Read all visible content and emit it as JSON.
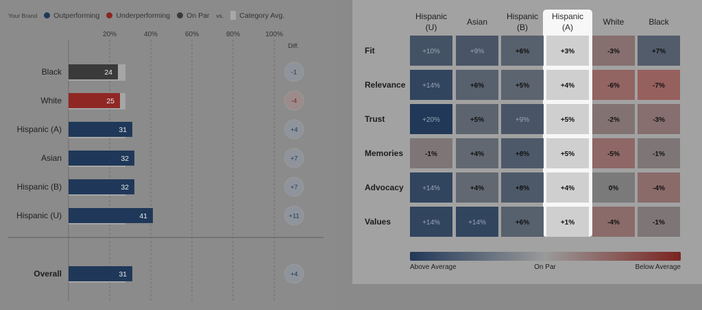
{
  "legend": {
    "brand_label": "Your Brand",
    "outperforming": "Outperforming",
    "underperforming": "Underperforming",
    "on_par": "On Par",
    "vs": "vs.",
    "category_avg": "Category Avg."
  },
  "colors": {
    "outperforming": "#1f3859",
    "underperforming": "#9a2a26",
    "on_par": "#3a3a3a",
    "category_avg": "#9c9c9c"
  },
  "chart_data": [
    {
      "type": "bar",
      "orientation": "horizontal",
      "categories": [
        "Black",
        "White",
        "Hispanic (A)",
        "Asian",
        "Hispanic (B)",
        "Hispanic (U)"
      ],
      "values": [
        24,
        25,
        31,
        32,
        32,
        41
      ],
      "status": [
        "on_par",
        "underperforming",
        "outperforming",
        "outperforming",
        "outperforming",
        "outperforming"
      ],
      "diff_label": "Diff.",
      "diffs": [
        "-1",
        "-4",
        "+4",
        "+7",
        "+7",
        "+11"
      ],
      "category_avg": 27,
      "xlim": [
        0,
        100
      ],
      "xticks": [
        "20%",
        "40%",
        "60%",
        "80%",
        "100%"
      ],
      "overall": {
        "label": "Overall",
        "value": 31,
        "diff": "+4",
        "status": "outperforming"
      }
    },
    {
      "type": "heatmap",
      "columns": [
        "Hispanic (U)",
        "Asian",
        "Hispanic (B)",
        "Hispanic (A)",
        "White",
        "Black"
      ],
      "highlight_column": "Hispanic (A)",
      "rows": [
        "Fit",
        "Relevance",
        "Trust",
        "Memories",
        "Advocacy",
        "Values"
      ],
      "values": [
        [
          10,
          9,
          6,
          3,
          -3,
          7
        ],
        [
          14,
          6,
          5,
          4,
          -6,
          -7
        ],
        [
          20,
          5,
          9,
          5,
          -2,
          -3
        ],
        [
          -1,
          4,
          8,
          5,
          -5,
          -1
        ],
        [
          14,
          4,
          8,
          4,
          0,
          -4
        ],
        [
          14,
          14,
          6,
          1,
          -4,
          -1
        ]
      ],
      "labels": [
        [
          "+10%",
          "+9%",
          "+6%",
          "+3%",
          "-3%",
          "+7%"
        ],
        [
          "+14%",
          "+6%",
          "+5%",
          "+4%",
          "-6%",
          "-7%"
        ],
        [
          "+20%",
          "+5%",
          "+9%",
          "+5%",
          "-2%",
          "-3%"
        ],
        [
          "-1%",
          "+4%",
          "+8%",
          "+5%",
          "-5%",
          "-1%"
        ],
        [
          "+14%",
          "+4%",
          "+8%",
          "+4%",
          "0%",
          "-4%"
        ],
        [
          "+14%",
          "+14%",
          "+6%",
          "+1%",
          "-4%",
          "-1%"
        ]
      ],
      "scale": {
        "left": "Above Average",
        "center": "On Par",
        "right": "Below Average"
      }
    }
  ]
}
